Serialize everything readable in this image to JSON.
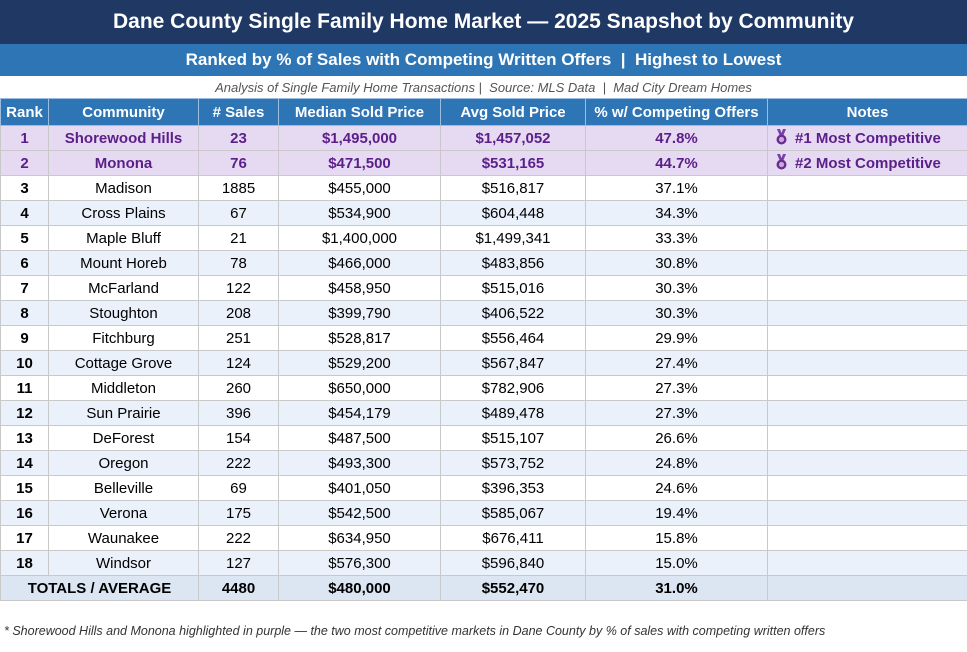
{
  "header": {
    "title": "Dane County Single Family Home Market — 2025 Snapshot by Community",
    "subtitle": "Ranked by % of Sales with Competing Written Offers  |  Highest to Lowest",
    "source": "Analysis of Single Family Home Transactions |  Source: MLS Data  |  Mad City Dream Homes"
  },
  "table": {
    "columns": [
      "Rank",
      "Community",
      "# Sales",
      "Median Sold Price",
      "Avg Sold Price",
      "% w/ Competing Offers",
      "Notes"
    ],
    "rows": [
      [
        "1",
        "Shorewood Hills",
        "23",
        "$1,495,000",
        "$1,457,052",
        "47.8%",
        "#1 Most Competitive"
      ],
      [
        "2",
        "Monona",
        "76",
        "$471,500",
        "$531,165",
        "44.7%",
        "#2 Most Competitive"
      ],
      [
        "3",
        "Madison",
        "1885",
        "$455,000",
        "$516,817",
        "37.1%"
      ],
      [
        "4",
        "Cross Plains",
        "67",
        "$534,900",
        "$604,448",
        "34.3%"
      ],
      [
        "5",
        "Maple Bluff",
        "21",
        "$1,400,000",
        "$1,499,341",
        "33.3%"
      ],
      [
        "6",
        "Mount Horeb",
        "78",
        "$466,000",
        "$483,856",
        "30.8%"
      ],
      [
        "7",
        "McFarland",
        "122",
        "$458,950",
        "$515,016",
        "30.3%"
      ],
      [
        "8",
        "Stoughton",
        "208",
        "$399,790",
        "$406,522",
        "30.3%"
      ],
      [
        "9",
        "Fitchburg",
        "251",
        "$528,817",
        "$556,464",
        "29.9%"
      ],
      [
        "10",
        "Cottage Grove",
        "124",
        "$529,200",
        "$567,847",
        "27.4%"
      ],
      [
        "11",
        "Middleton",
        "260",
        "$650,000",
        "$782,906",
        "27.3%"
      ],
      [
        "12",
        "Sun Prairie",
        "396",
        "$454,179",
        "$489,478",
        "27.3%"
      ],
      [
        "13",
        "DeForest",
        "154",
        "$487,500",
        "$515,107",
        "26.6%"
      ],
      [
        "14",
        "Oregon",
        "222",
        "$493,300",
        "$573,752",
        "24.8%"
      ],
      [
        "15",
        "Belleville",
        "69",
        "$401,050",
        "$396,353",
        "24.6%"
      ],
      [
        "16",
        "Verona",
        "175",
        "$542,500",
        "$585,067",
        "19.4%"
      ],
      [
        "17",
        "Waunakee",
        "222",
        "$634,950",
        "$676,411",
        "15.8%"
      ],
      [
        "18",
        "Windsor",
        "127",
        "$576,300",
        "$596,840",
        "15.0%"
      ]
    ],
    "totals": [
      "TOTALS / AVERAGE",
      "4480",
      "$480,000",
      "$552,470",
      "31.0%"
    ]
  },
  "footnote": "* Shorewood Hills and Monona highlighted in purple — the two most competitive markets in Dane County by % of sales with competing written offers"
}
